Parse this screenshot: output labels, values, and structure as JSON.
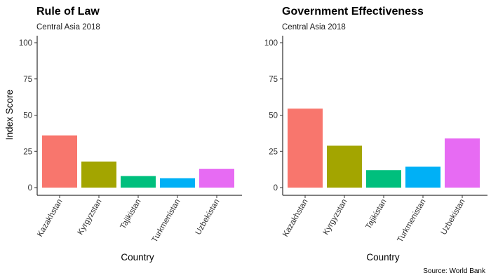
{
  "caption": "Source: World Bank",
  "chart_data": [
    {
      "type": "bar",
      "title": "Rule of Law",
      "subtitle": "Central Asia 2018",
      "xlabel": "Country",
      "ylabel": "Index Score",
      "ylim": [
        0,
        100
      ],
      "yticks": [
        "0",
        "25",
        "50",
        "75",
        "100"
      ],
      "grid": false,
      "legend": "none",
      "categories": [
        "Kazakhstan",
        "Kyrgyzstan",
        "Tajikistan",
        "Turkmenistan",
        "Uzbekistan"
      ],
      "values": [
        36,
        18,
        8,
        6.5,
        13
      ],
      "colors": [
        "#F8766D",
        "#A3A500",
        "#00BF7D",
        "#00B0F6",
        "#E76BF3"
      ]
    },
    {
      "type": "bar",
      "title": "Government Effectiveness",
      "subtitle": "Central Asia 2018",
      "xlabel": "Country",
      "ylabel": "",
      "ylim": [
        0,
        100
      ],
      "yticks": [
        "0",
        "25",
        "50",
        "75",
        "100"
      ],
      "grid": false,
      "legend": "none",
      "categories": [
        "Kazakhstan",
        "Kyrgyzstan",
        "Tajikistan",
        "Turkmenistan",
        "Uzbekistan"
      ],
      "values": [
        54.5,
        29,
        12,
        14.5,
        34
      ],
      "colors": [
        "#F8766D",
        "#A3A500",
        "#00BF7D",
        "#00B0F6",
        "#E76BF3"
      ]
    }
  ]
}
